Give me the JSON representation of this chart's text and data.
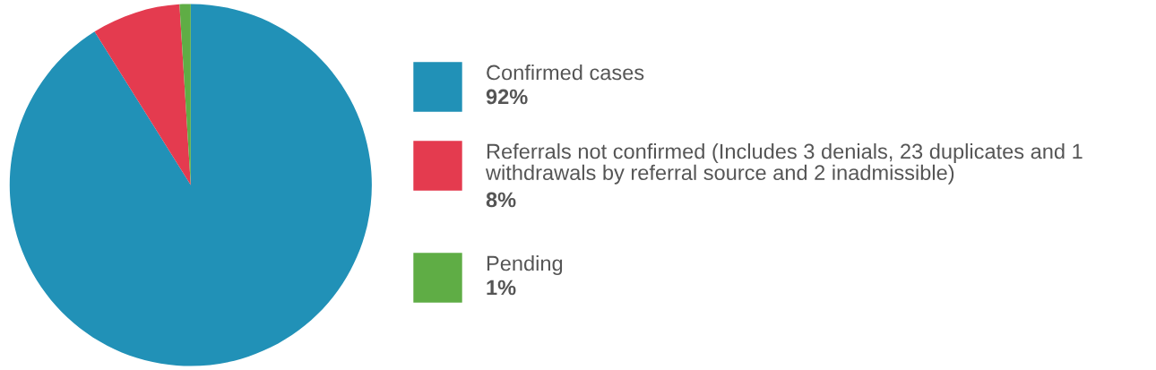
{
  "chart_data": {
    "type": "pie",
    "categories": [
      "Confirmed cases",
      "Referrals not confirmed (Includes 3 denials, 23 duplicates and 1 withdrawals by referral source and 2 inadmissible)",
      "Pending"
    ],
    "values": [
      92,
      8,
      1
    ],
    "value_labels": [
      "92%",
      "8%",
      "1%"
    ],
    "colors": [
      "#2191b7",
      "#e43b4f",
      "#5fad45"
    ],
    "legend": "right"
  }
}
